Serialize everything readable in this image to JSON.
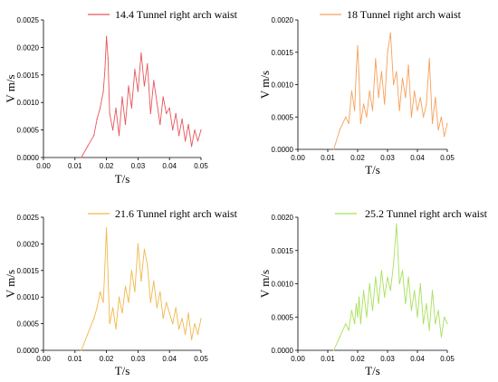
{
  "chart_data": [
    {
      "type": "line",
      "xlabel": "T/s",
      "ylabel": "V m/s",
      "xlim": [
        0,
        0.05
      ],
      "ylim": [
        0,
        0.0025
      ],
      "xticks": [
        "0.00",
        "0.01",
        "0.02",
        "0.03",
        "0.04",
        "0.05"
      ],
      "yticks": [
        "0.0000",
        "0.0005",
        "0.0010",
        "0.0015",
        "0.0020",
        "0.0025"
      ],
      "legend_position": "top-right",
      "series": [
        {
          "name": "14.4 Tunnel right arch waist",
          "color": "#e8545a",
          "x": [
            0.012,
            0.014,
            0.016,
            0.017,
            0.018,
            0.019,
            0.0195,
            0.02,
            0.0205,
            0.021,
            0.022,
            0.023,
            0.024,
            0.025,
            0.026,
            0.027,
            0.028,
            0.029,
            0.03,
            0.031,
            0.032,
            0.033,
            0.034,
            0.035,
            0.036,
            0.037,
            0.038,
            0.039,
            0.04,
            0.041,
            0.042,
            0.043,
            0.044,
            0.045,
            0.046,
            0.047,
            0.048,
            0.049,
            0.05
          ],
          "y": [
            0.0,
            0.0002,
            0.0004,
            0.0007,
            0.0009,
            0.0012,
            0.0016,
            0.0022,
            0.0018,
            0.0008,
            0.0005,
            0.0009,
            0.0004,
            0.0011,
            0.0006,
            0.0013,
            0.0009,
            0.0016,
            0.0012,
            0.0019,
            0.0013,
            0.0017,
            0.0008,
            0.0014,
            0.001,
            0.0006,
            0.0011,
            0.0008,
            0.0009,
            0.0005,
            0.0008,
            0.0004,
            0.0007,
            0.0003,
            0.0006,
            0.0002,
            0.0005,
            0.0003,
            0.0005
          ]
        }
      ]
    },
    {
      "type": "line",
      "xlabel": "T/s",
      "ylabel": "V m/s",
      "xlim": [
        0,
        0.05
      ],
      "ylim": [
        0,
        0.002
      ],
      "xticks": [
        "0.00",
        "0.01",
        "0.02",
        "0.03",
        "0.04",
        "0.05"
      ],
      "yticks": [
        "0.0000",
        "0.0005",
        "0.0010",
        "0.0015",
        "0.0020"
      ],
      "legend_position": "top-right",
      "series": [
        {
          "name": "18 Tunnel right arch waist",
          "color": "#f5a05a",
          "x": [
            0.012,
            0.014,
            0.016,
            0.017,
            0.018,
            0.019,
            0.0195,
            0.02,
            0.0205,
            0.021,
            0.022,
            0.023,
            0.024,
            0.025,
            0.026,
            0.027,
            0.028,
            0.029,
            0.03,
            0.031,
            0.032,
            0.033,
            0.034,
            0.035,
            0.036,
            0.037,
            0.038,
            0.039,
            0.04,
            0.041,
            0.042,
            0.043,
            0.044,
            0.045,
            0.046,
            0.047,
            0.048,
            0.049,
            0.05
          ],
          "y": [
            0.0,
            0.0003,
            0.0005,
            0.0004,
            0.0009,
            0.0006,
            0.0012,
            0.0016,
            0.0011,
            0.0004,
            0.0007,
            0.0005,
            0.0009,
            0.0006,
            0.0014,
            0.0008,
            0.0012,
            0.0007,
            0.0015,
            0.0018,
            0.001,
            0.0012,
            0.0006,
            0.0011,
            0.0008,
            0.0013,
            0.0005,
            0.0009,
            0.0006,
            0.0008,
            0.0005,
            0.0007,
            0.0014,
            0.0004,
            0.0008,
            0.0003,
            0.0005,
            0.0002,
            0.0004
          ]
        }
      ]
    },
    {
      "type": "line",
      "xlabel": "T/s",
      "ylabel": "V m/s",
      "xlim": [
        0,
        0.05
      ],
      "ylim": [
        0,
        0.0025
      ],
      "xticks": [
        "0.00",
        "0.01",
        "0.02",
        "0.03",
        "0.04",
        "0.05"
      ],
      "yticks": [
        "0.0000",
        "0.0005",
        "0.0010",
        "0.0015",
        "0.0020",
        "0.0025"
      ],
      "legend_position": "top-right",
      "series": [
        {
          "name": "21.6 Tunnel right arch waist",
          "color": "#f0b84a",
          "x": [
            0.012,
            0.014,
            0.016,
            0.017,
            0.018,
            0.019,
            0.0195,
            0.02,
            0.0205,
            0.021,
            0.022,
            0.023,
            0.024,
            0.025,
            0.026,
            0.027,
            0.028,
            0.029,
            0.03,
            0.031,
            0.032,
            0.033,
            0.034,
            0.035,
            0.036,
            0.037,
            0.038,
            0.039,
            0.04,
            0.041,
            0.042,
            0.043,
            0.044,
            0.045,
            0.046,
            0.047,
            0.048,
            0.049,
            0.05
          ],
          "y": [
            0.0,
            0.0003,
            0.0006,
            0.0008,
            0.0011,
            0.0009,
            0.0016,
            0.0023,
            0.0014,
            0.0005,
            0.0008,
            0.0004,
            0.001,
            0.0007,
            0.0012,
            0.0009,
            0.0015,
            0.0011,
            0.002,
            0.0013,
            0.0019,
            0.0016,
            0.0009,
            0.0013,
            0.0008,
            0.0011,
            0.0006,
            0.0009,
            0.0007,
            0.0005,
            0.0008,
            0.0004,
            0.0006,
            0.0003,
            0.0007,
            0.0002,
            0.0005,
            0.0003,
            0.0006
          ]
        }
      ]
    },
    {
      "type": "line",
      "xlabel": "T/s",
      "ylabel": "V m/s",
      "xlim": [
        0,
        0.05
      ],
      "ylim": [
        0,
        0.002
      ],
      "xticks": [
        "0.00",
        "0.01",
        "0.02",
        "0.03",
        "0.04",
        "0.05"
      ],
      "yticks": [
        "0.0000",
        "0.0005",
        "0.0010",
        "0.0015",
        "0.0020"
      ],
      "legend_position": "top-right",
      "series": [
        {
          "name": "25.2 Tunnel right arch waist",
          "color": "#a8e05a",
          "x": [
            0.012,
            0.014,
            0.016,
            0.017,
            0.018,
            0.019,
            0.0195,
            0.02,
            0.0205,
            0.021,
            0.022,
            0.023,
            0.024,
            0.025,
            0.026,
            0.027,
            0.028,
            0.029,
            0.03,
            0.031,
            0.032,
            0.033,
            0.034,
            0.035,
            0.036,
            0.037,
            0.038,
            0.039,
            0.04,
            0.041,
            0.042,
            0.043,
            0.044,
            0.045,
            0.046,
            0.047,
            0.048,
            0.049,
            0.05
          ],
          "y": [
            0.0,
            0.0002,
            0.0004,
            0.0003,
            0.0006,
            0.0004,
            0.0007,
            0.0005,
            0.0008,
            0.0004,
            0.0009,
            0.0005,
            0.001,
            0.0006,
            0.0011,
            0.0007,
            0.0012,
            0.0008,
            0.0011,
            0.0009,
            0.0013,
            0.0019,
            0.001,
            0.0012,
            0.0007,
            0.0011,
            0.0006,
            0.0009,
            0.0005,
            0.001,
            0.0004,
            0.0007,
            0.0003,
            0.0009,
            0.0004,
            0.0006,
            0.0002,
            0.0005,
            0.0004
          ]
        }
      ]
    }
  ]
}
